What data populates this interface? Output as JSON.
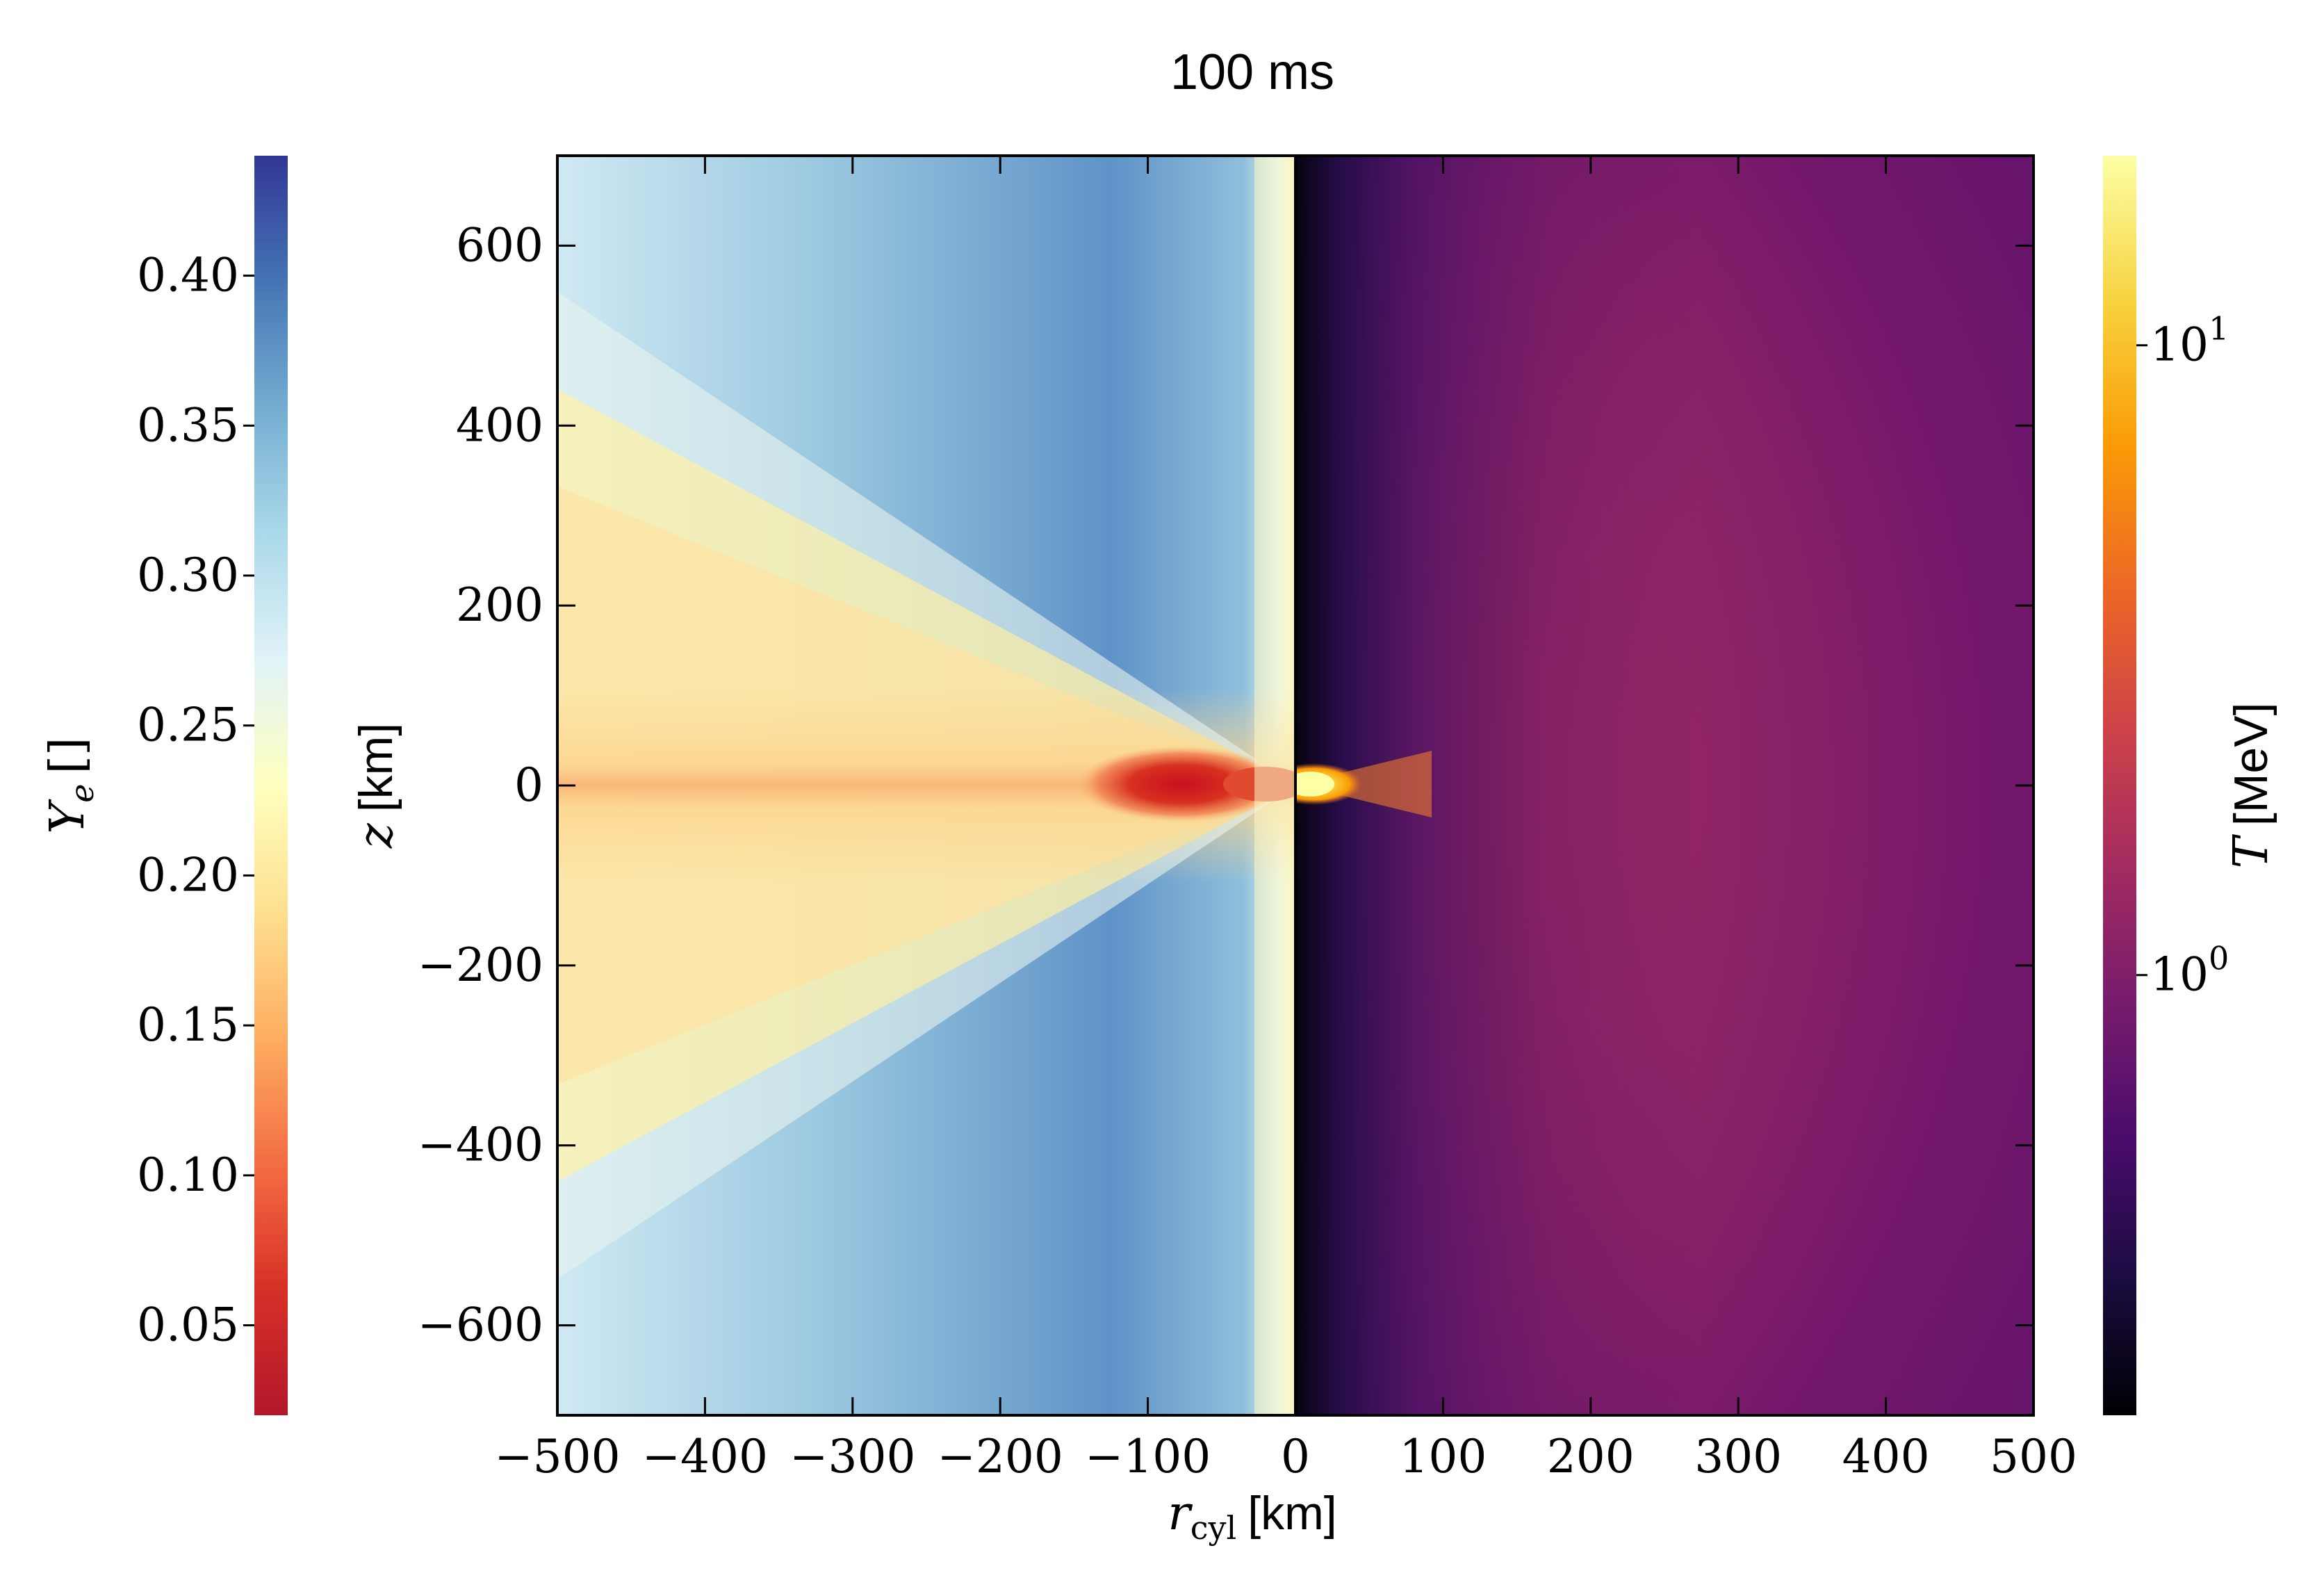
{
  "chart_data": {
    "type": "heatmap",
    "title": "100 ms",
    "xlabel": {
      "symbol": "r",
      "subscript": "cyl",
      "unit": "[km]"
    },
    "ylabel": {
      "symbol": "z",
      "unit": "[km]"
    },
    "xlim": [
      -500,
      500
    ],
    "ylim": [
      -700,
      700
    ],
    "x_ticks": [
      -500,
      -400,
      -300,
      -200,
      -100,
      0,
      100,
      200,
      300,
      400,
      500
    ],
    "x_tick_labels": [
      "−500",
      "−400",
      "−300",
      "−200",
      "−100",
      "0",
      "100",
      "200",
      "300",
      "400",
      "500"
    ],
    "y_ticks": [
      -600,
      -400,
      -200,
      0,
      200,
      400,
      600
    ],
    "y_tick_labels": [
      "−600",
      "−400",
      "−200",
      "0",
      "200",
      "400",
      "600"
    ],
    "panels": [
      {
        "name": "left",
        "quantity": "Y_e",
        "x_range": [
          -500,
          0
        ],
        "colormap": "RdYlBu"
      },
      {
        "name": "right",
        "quantity": "T",
        "x_range": [
          0,
          500
        ],
        "colormap": "inferno",
        "scale": "log"
      }
    ],
    "colorbars": {
      "left": {
        "label": {
          "symbol": "Y",
          "subscript": "e",
          "unit": "[]"
        },
        "range": [
          0.02,
          0.44
        ],
        "ticks": [
          0.05,
          0.1,
          0.15,
          0.2,
          0.25,
          0.3,
          0.35,
          0.4
        ],
        "tick_labels": [
          "0.05",
          "0.10",
          "0.15",
          "0.20",
          "0.25",
          "0.30",
          "0.35",
          "0.40"
        ],
        "colors": [
          "#b2182b",
          "#d73027",
          "#f46d43",
          "#fdae61",
          "#fee090",
          "#ffffbf",
          "#e0f3f8",
          "#abd9e9",
          "#74add1",
          "#4575b4",
          "#313695"
        ]
      },
      "right": {
        "label": {
          "symbol": "T",
          "unit": "[MeV]"
        },
        "scale": "log",
        "range": [
          0.2,
          20
        ],
        "ticks": [
          1,
          10
        ],
        "tick_labels": [
          {
            "base": "10",
            "exp": "0"
          },
          {
            "base": "10",
            "exp": "1"
          }
        ],
        "colors": [
          "#000004",
          "#1b0c41",
          "#4a0c6b",
          "#781c6d",
          "#a52c60",
          "#cf4446",
          "#ed6925",
          "#fb9b06",
          "#f7d13d",
          "#fcffa4"
        ]
      }
    },
    "grid": false
  }
}
